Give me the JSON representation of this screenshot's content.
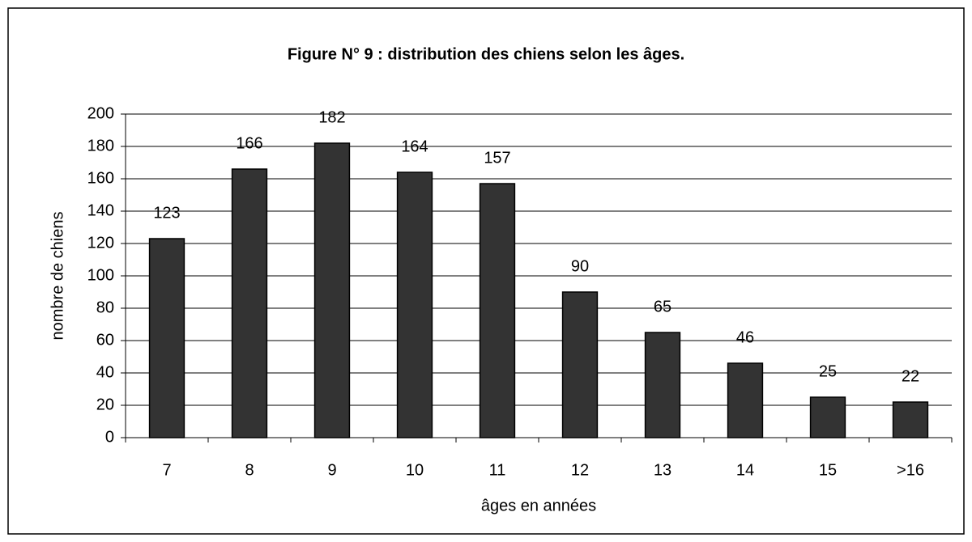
{
  "chart_data": {
    "type": "bar",
    "title": "Figure N° 9 : distribution des chiens selon les âges.",
    "x_label": "âges en années",
    "y_label": "nombre de chiens",
    "categories": [
      "7",
      "8",
      "9",
      "10",
      "11",
      "12",
      "13",
      "14",
      "15",
      ">16"
    ],
    "values": [
      123,
      166,
      182,
      164,
      157,
      90,
      65,
      46,
      25,
      22
    ],
    "color": "#333333",
    "ylim": [
      0,
      200
    ],
    "yticks": [
      0,
      20,
      40,
      60,
      80,
      100,
      120,
      140,
      160,
      180,
      200
    ],
    "grid": true
  }
}
